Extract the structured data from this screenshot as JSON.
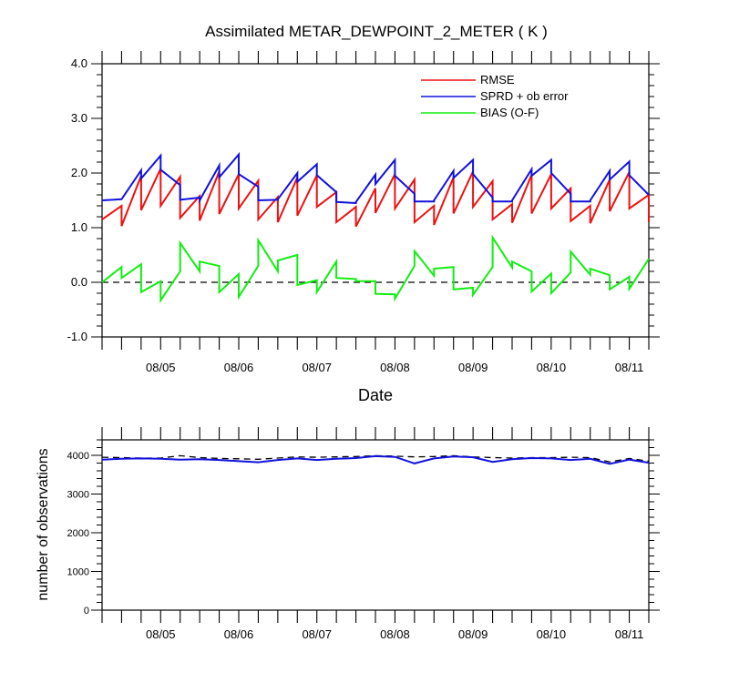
{
  "chart_data": [
    {
      "type": "line",
      "title": "Assimilated METAR_DEWPOINT_2_METER ( K )",
      "xlabel": "Date",
      "ylabel": "",
      "x_tick_labels": [
        "08/05",
        "08/06",
        "08/07",
        "08/08",
        "08/09",
        "08/10",
        "08/11"
      ],
      "x_tick_positions": [
        5,
        6,
        7,
        8,
        9,
        10,
        11
      ],
      "xlim": [
        4.25,
        11.25
      ],
      "ylim": [
        -1.0,
        4.0
      ],
      "y_tick_values": [
        -1.0,
        0.0,
        1.0,
        2.0,
        3.0,
        4.0
      ],
      "y_tick_labels": [
        "-1.0",
        "0.0",
        "1.0",
        "2.0",
        "3.0",
        "4.0"
      ],
      "grid": false,
      "legend_position": "top-right",
      "zero_line": "dashed",
      "series": [
        {
          "name": "RMSE",
          "color": "#ee1111",
          "x": [
            4.25,
            4.5,
            4.5,
            4.75,
            4.75,
            5.0,
            5.0,
            5.25,
            5.25,
            5.5,
            5.5,
            5.75,
            5.75,
            6.0,
            6.0,
            6.25,
            6.25,
            6.5,
            6.5,
            6.75,
            6.75,
            7.0,
            7.0,
            7.25,
            7.25,
            7.5,
            7.5,
            7.75,
            7.75,
            8.0,
            8.0,
            8.25,
            8.25,
            8.5,
            8.5,
            8.75,
            8.75,
            9.0,
            9.0,
            9.25,
            9.25,
            9.5,
            9.5,
            9.75,
            9.75,
            10.0,
            10.0,
            10.25,
            10.25,
            10.5,
            10.5,
            10.75,
            10.75,
            11.0,
            11.0,
            11.25,
            11.25
          ],
          "values": [
            1.15,
            1.4,
            1.03,
            1.95,
            1.32,
            2.08,
            1.4,
            1.93,
            1.18,
            1.58,
            1.13,
            2.03,
            1.25,
            1.98,
            1.35,
            1.86,
            1.15,
            1.56,
            1.1,
            1.92,
            1.22,
            1.96,
            1.38,
            1.65,
            1.1,
            1.38,
            1.02,
            1.72,
            1.27,
            1.98,
            1.35,
            1.88,
            1.1,
            1.4,
            1.05,
            1.92,
            1.26,
            2.03,
            1.38,
            1.85,
            1.15,
            1.43,
            1.09,
            1.97,
            1.26,
            1.98,
            1.35,
            1.72,
            1.12,
            1.4,
            1.08,
            1.88,
            1.3,
            2.02,
            1.35,
            1.6,
            1.1
          ]
        },
        {
          "name": "SPRD + ob error",
          "color": "#1111dd",
          "x": [
            4.25,
            4.5,
            4.5,
            4.75,
            4.75,
            5.0,
            5.0,
            5.25,
            5.25,
            5.5,
            5.5,
            5.75,
            5.75,
            6.0,
            6.0,
            6.25,
            6.25,
            6.5,
            6.5,
            6.75,
            6.75,
            7.0,
            7.0,
            7.25,
            7.25,
            7.5,
            7.5,
            7.75,
            7.75,
            8.0,
            8.0,
            8.25,
            8.25,
            8.5,
            8.5,
            8.75,
            8.75,
            9.0,
            9.0,
            9.25,
            9.25,
            9.5,
            9.5,
            9.75,
            9.75,
            10.0,
            10.0,
            10.25,
            10.25,
            10.5,
            10.5,
            10.75,
            10.75,
            11.0,
            11.0,
            11.25
          ],
          "values": [
            1.5,
            1.52,
            1.52,
            2.05,
            1.9,
            2.32,
            2.06,
            1.78,
            1.51,
            1.55,
            1.5,
            2.14,
            1.92,
            2.34,
            1.98,
            1.75,
            1.5,
            1.51,
            1.52,
            2.0,
            1.84,
            2.16,
            1.96,
            1.65,
            1.47,
            1.45,
            1.47,
            1.97,
            1.8,
            2.24,
            1.95,
            1.62,
            1.48,
            1.48,
            1.5,
            2.04,
            1.91,
            2.24,
            1.98,
            1.55,
            1.48,
            1.48,
            1.5,
            2.07,
            1.95,
            2.24,
            2.0,
            1.62,
            1.48,
            1.48,
            1.5,
            2.04,
            1.88,
            2.21,
            1.96,
            1.6
          ]
        },
        {
          "name": "BIAS (O-F)",
          "color": "#11ee11",
          "x": [
            4.25,
            4.5,
            4.5,
            4.75,
            4.75,
            5.0,
            5.0,
            5.25,
            5.25,
            5.5,
            5.5,
            5.75,
            5.75,
            6.0,
            6.0,
            6.25,
            6.25,
            6.5,
            6.5,
            6.75,
            6.75,
            7.0,
            7.0,
            7.25,
            7.25,
            7.5,
            7.5,
            7.75,
            7.75,
            8.0,
            8.0,
            8.25,
            8.25,
            8.5,
            8.5,
            8.75,
            8.75,
            9.0,
            9.0,
            9.25,
            9.25,
            9.5,
            9.5,
            9.75,
            9.75,
            10.0,
            10.0,
            10.25,
            10.25,
            10.5,
            10.5,
            10.75,
            10.75,
            11.0,
            11.0,
            11.25
          ],
          "values": [
            0.0,
            0.28,
            0.08,
            0.33,
            -0.18,
            0.02,
            -0.33,
            0.2,
            0.72,
            0.2,
            0.38,
            0.3,
            -0.18,
            0.15,
            -0.27,
            0.3,
            0.77,
            0.2,
            0.4,
            0.5,
            -0.05,
            0.04,
            -0.18,
            0.38,
            0.08,
            0.06,
            0.02,
            0.02,
            -0.21,
            -0.22,
            -0.3,
            0.3,
            0.57,
            0.12,
            0.25,
            0.28,
            -0.13,
            -0.1,
            -0.23,
            0.28,
            0.82,
            0.27,
            0.38,
            0.2,
            -0.17,
            0.16,
            -0.2,
            0.18,
            0.56,
            0.14,
            0.25,
            0.13,
            -0.13,
            0.1,
            -0.12,
            0.43
          ]
        }
      ]
    },
    {
      "type": "line",
      "title": "",
      "xlabel": "",
      "ylabel": "number of observations",
      "x_tick_labels": [
        "08/05",
        "08/06",
        "08/07",
        "08/08",
        "08/09",
        "08/10",
        "08/11"
      ],
      "x_tick_positions": [
        5,
        6,
        7,
        8,
        9,
        10,
        11
      ],
      "xlim": [
        4.25,
        11.25
      ],
      "ylim": [
        0,
        4400
      ],
      "y_tick_values": [
        0,
        1000,
        2000,
        3000,
        4000
      ],
      "y_tick_labels": [
        "0",
        "1000",
        "2000",
        "3000",
        "4000"
      ],
      "grid": false,
      "series": [
        {
          "color": "#000000",
          "style": "dashed",
          "x": [
            4.25,
            4.5,
            4.75,
            5.0,
            5.25,
            5.5,
            5.75,
            6.0,
            6.25,
            6.5,
            6.75,
            7.0,
            7.25,
            7.5,
            7.75,
            8.0,
            8.25,
            8.5,
            8.75,
            9.0,
            9.25,
            9.5,
            9.75,
            10.0,
            10.25,
            10.5,
            10.75,
            11.0,
            11.25
          ],
          "values": [
            3950,
            3940,
            3930,
            3930,
            3990,
            3940,
            3920,
            3910,
            3900,
            3930,
            3960,
            3950,
            3960,
            3970,
            3990,
            3980,
            3960,
            3970,
            3990,
            3960,
            3940,
            3930,
            3940,
            3940,
            3950,
            3940,
            3830,
            3920,
            3850
          ]
        },
        {
          "color": "#1111dd",
          "style": "solid",
          "x": [
            4.25,
            4.5,
            4.75,
            5.0,
            5.25,
            5.5,
            5.75,
            6.0,
            6.25,
            6.5,
            6.75,
            7.0,
            7.25,
            7.5,
            7.75,
            8.0,
            8.25,
            8.5,
            8.75,
            9.0,
            9.25,
            9.5,
            9.75,
            10.0,
            10.25,
            10.5,
            10.75,
            11.0,
            11.25
          ],
          "values": [
            3890,
            3910,
            3920,
            3910,
            3890,
            3900,
            3880,
            3850,
            3820,
            3880,
            3920,
            3880,
            3910,
            3930,
            3980,
            3960,
            3790,
            3920,
            3970,
            3950,
            3830,
            3900,
            3930,
            3920,
            3880,
            3910,
            3780,
            3890,
            3810
          ]
        }
      ]
    }
  ]
}
